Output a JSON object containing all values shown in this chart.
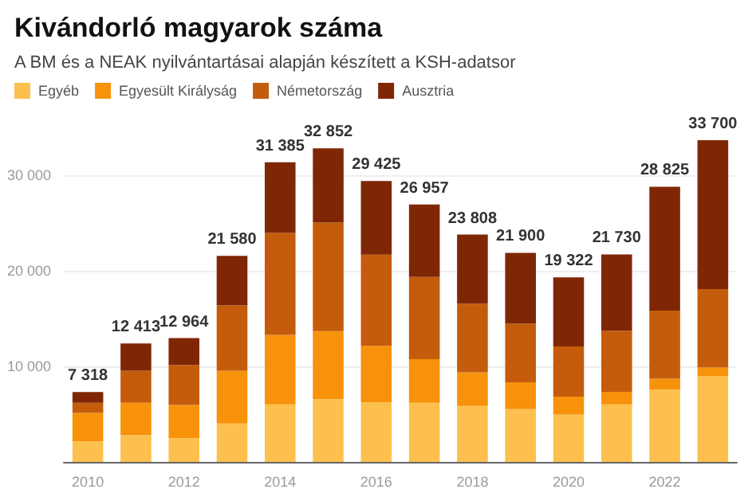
{
  "chart_data": {
    "type": "bar",
    "title": "Kivándorló magyarok száma",
    "subtitle": "A BM és a NEAK nyilvántartásai alapján készített a KSH-adatsor",
    "categories": [
      "2010",
      null,
      "2012",
      null,
      "2014",
      null,
      "2016",
      null,
      "2018",
      null,
      "2020",
      null,
      "2022",
      null
    ],
    "stacked": true,
    "series": [
      {
        "name": "Egyéb",
        "color": "#fdc04e",
        "values": [
          2150,
          2820,
          2480,
          4030,
          6020,
          6570,
          6240,
          6190,
          5850,
          5520,
          4970,
          6020,
          7560,
          9000
        ]
      },
      {
        "name": "Egyesült Királyság",
        "color": "#f7920a",
        "values": [
          2990,
          3370,
          3480,
          5530,
          7290,
          7130,
          5910,
          4580,
          3540,
          2820,
          1880,
          1320,
          1160,
          880
        ]
      },
      {
        "name": "Németország",
        "color": "#c45c0b",
        "values": [
          1050,
          3370,
          4200,
          6840,
          10700,
          11360,
          9550,
          8610,
          7180,
          6130,
          5240,
          6410,
          7120,
          8230
        ]
      },
      {
        "name": "Ausztria",
        "color": "#7f2704",
        "values": [
          1128,
          2853,
          2804,
          5180,
          7375,
          7792,
          7725,
          7577,
          7238,
          7430,
          7232,
          7980,
          12985,
          15590
        ]
      }
    ],
    "ylim": [
      0,
      33700
    ],
    "totals": [
      "7 318",
      "12 413",
      "12 964",
      "21 580",
      "31 385",
      "32 852",
      "29 425",
      "26 957",
      "23 808",
      "21 900",
      "19 322",
      "21 730",
      "28 825",
      "33 700"
    ],
    "yticks": [
      {
        "value": 0,
        "label": null
      },
      {
        "value": 10000,
        "label": "10 000"
      },
      {
        "value": 20000,
        "label": "20 000"
      },
      {
        "value": 30000,
        "label": "30 000"
      }
    ],
    "grid": "y",
    "legend": "top left"
  }
}
